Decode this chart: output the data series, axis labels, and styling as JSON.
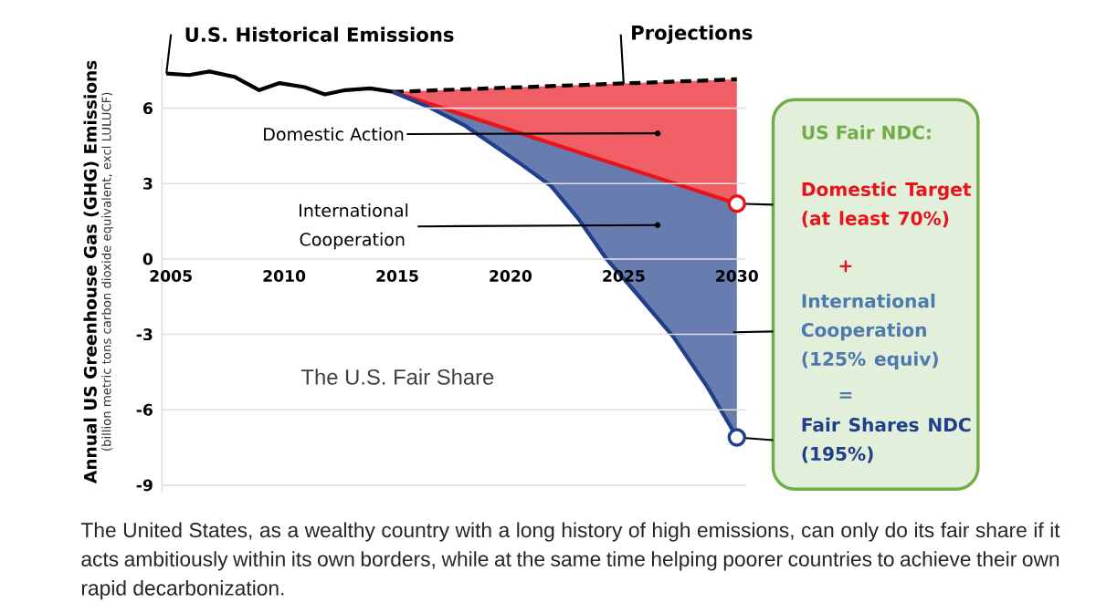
{
  "chart_data": {
    "type": "line",
    "ylabel": "Annual US Greenhouse Gas (GHG) Emissions",
    "xlim": [
      2004.6,
      2030.4
    ],
    "xticks": [
      2005,
      2010,
      2015,
      2020,
      2025,
      2030
    ],
    "ylim": [
      -9.3,
      8
    ],
    "yticks": [
      -9,
      -6,
      -3,
      0,
      3,
      6
    ],
    "grid": "y",
    "line_style": "solid",
    "series": [
      {
        "color": "#000000",
        "x": [
          2004.8,
          2005.8,
          2006.7,
          2007.8,
          2008.9,
          2009.8,
          2010.9,
          2011.8,
          2012.7,
          2013.8,
          2014.8
        ],
        "values": [
          7.38,
          7.32,
          7.46,
          7.25,
          6.72,
          7.0,
          6.84,
          6.55,
          6.72,
          6.79,
          6.65
        ]
      },
      {
        "color": "#000000",
        "line_style": "dashed",
        "x": [
          2014.8,
          2030
        ],
        "values": [
          6.65,
          7.15
        ]
      },
      {
        "color": "#e8141c",
        "x": [
          2014.8,
          2030
        ],
        "values": [
          6.65,
          2.2
        ],
        "lower": [
          6.65,
          2.2
        ],
        "upper": [
          6.65,
          7.15
        ]
      },
      {
        "color": "#1f3f8a",
        "x": [
          2014.8,
          2016.5,
          2018,
          2019.2,
          2020.5,
          2021.8,
          2023,
          2024.2,
          2025.5,
          2027.2,
          2028.7,
          2030
        ],
        "values": [
          6.65,
          6.0,
          5.3,
          4.56,
          3.75,
          2.9,
          1.6,
          0.05,
          -1.3,
          -3.1,
          -5.1,
          -7.1
        ],
        "lower": [
          6.65,
          6.0,
          5.3,
          4.56,
          3.75,
          2.9,
          1.6,
          0.05,
          -1.3,
          -3.1,
          -5.1,
          -7.1
        ],
        "upper": [
          6.65,
          6.15,
          5.71,
          5.36,
          4.98,
          4.6,
          4.25,
          3.9,
          3.52,
          3.02,
          2.58,
          2.2
        ]
      }
    ],
    "annotations": [
      {
        "text": "U.S. Historical Emissions",
        "x": 2004.8,
        "y": 7.38
      },
      {
        "text": "Projections",
        "x": 2025,
        "y": 6.96
      },
      {
        "text": "Domestic Action",
        "x": 2026.5,
        "y": 5.0
      },
      {
        "text": "International Cooperation",
        "x": 2026.5,
        "y": 1.35
      },
      "US Fair NDC:",
      "Domestic Target (at least 70%)",
      "+",
      "International Cooperation (125% equiv)",
      "=",
      "Fair Shares NDC (195%)",
      "The U.S. Fair Share",
      "(billion metric tons carbon dioxide equivalent, excl LULUCF)",
      "The United States, as a wealthy country with a long history of high emissions, can only do its fair share if it acts ambitiously within its own borders, while at the same time helping poorer countries to achieve their own rapid decarbonization."
    ]
  }
}
